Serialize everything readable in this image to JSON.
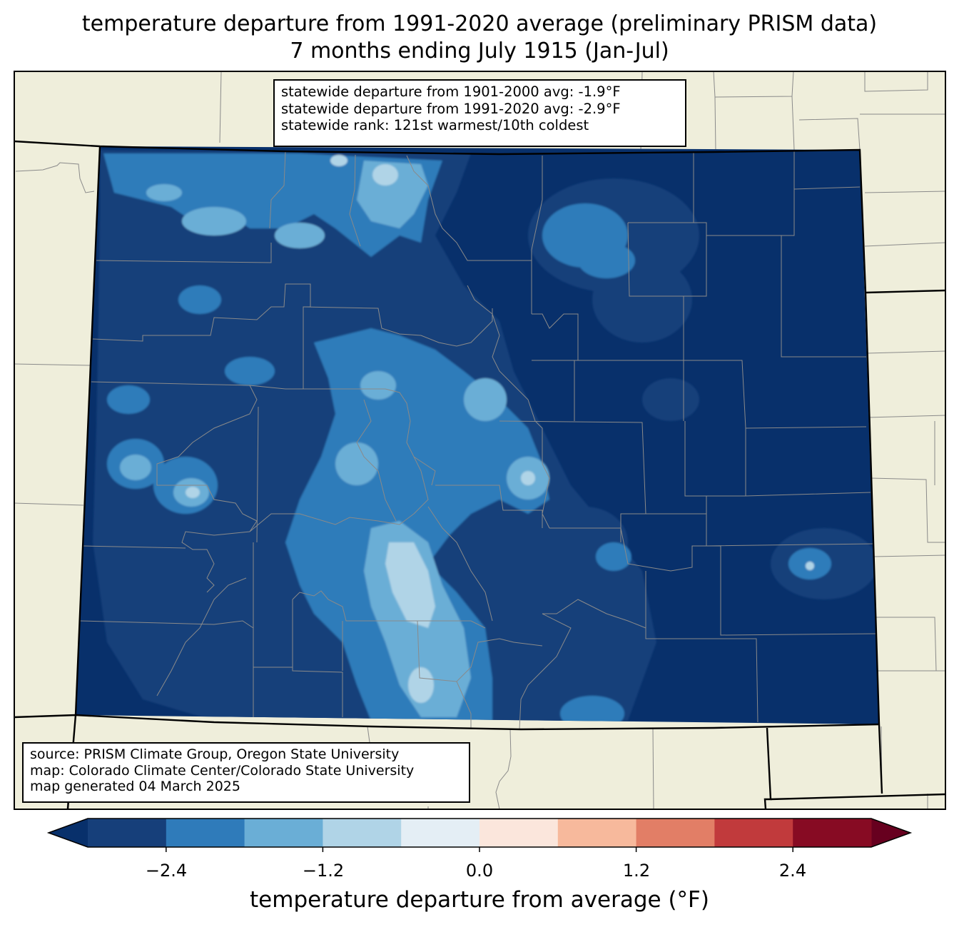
{
  "title": {
    "line1": "temperature departure from 1991-2020 average (preliminary PRISM data)",
    "line2": "7 months ending July 1915 (Jan-Jul)"
  },
  "stats": {
    "line1": "statewide departure from 1901-2000 avg: -1.9°F",
    "line2": "statewide departure from 1991-2020 avg: -2.9°F",
    "line3": "statewide rank: 121st warmest/10th coldest"
  },
  "source": {
    "line1": "source: PRISM Climate Group, Oregon State University",
    "line2": "map: Colorado Climate Center/Colorado State University",
    "line3": "map generated 04 March 2025"
  },
  "colorbar": {
    "label": "temperature departure from average (°F)",
    "ticks": [
      "−2.4",
      "−1.2",
      "0.0",
      "1.2",
      "2.4"
    ],
    "levels": [
      -3.0,
      -2.4,
      -1.8,
      -1.2,
      -0.6,
      0.0,
      0.6,
      1.2,
      1.8,
      2.4,
      3.0
    ],
    "colors": [
      "#163f7a",
      "#2f7bba",
      "#6aaed6",
      "#b0d4e7",
      "#e4eef5",
      "#fbe6dc",
      "#f7b99c",
      "#e27e66",
      "#c13a3c",
      "#870b23"
    ],
    "under_color": "#08306b",
    "over_color": "#67001f"
  },
  "map_colors": {
    "land": "#efeedb",
    "county_lines": "#8a8a8a",
    "state_lines": "#000000"
  }
}
